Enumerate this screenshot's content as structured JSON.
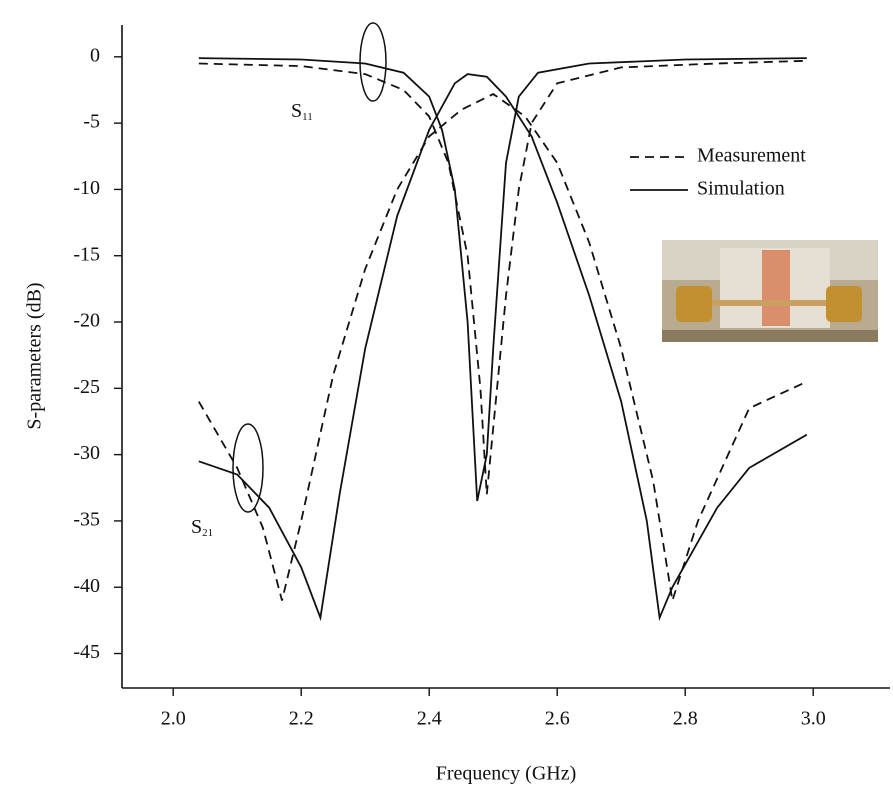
{
  "chart_data": {
    "type": "line",
    "xlabel": "Frequency (GHz)",
    "ylabel": "S-parameters (dB)",
    "xlim": [
      1.92,
      3.12
    ],
    "ylim": [
      -47.6,
      2.4
    ],
    "xticks": [
      {
        "value": 2.0,
        "label": "2.0"
      },
      {
        "value": 2.2,
        "label": "2.2"
      },
      {
        "value": 2.4,
        "label": "2.4"
      },
      {
        "value": 2.6,
        "label": "2.6"
      },
      {
        "value": 2.8,
        "label": "2.8"
      },
      {
        "value": 3.0,
        "label": "3.0"
      }
    ],
    "yticks": [
      0,
      -5,
      -10,
      -15,
      -20,
      -25,
      -30,
      -35,
      -40,
      -45
    ],
    "legend_position": "right",
    "series": [
      {
        "name": "Measurement",
        "color": "#111111",
        "dash": true,
        "x": [
          2.04,
          2.2,
          2.3,
          2.36,
          2.4,
          2.43,
          2.46,
          2.48,
          2.49,
          2.5,
          2.52,
          2.54,
          2.56,
          2.6,
          2.7,
          2.85,
          2.99
        ],
        "values": [
          -0.5,
          -0.7,
          -1.3,
          -2.5,
          -4.5,
          -8,
          -15,
          -25,
          -33,
          -28,
          -18,
          -10,
          -5,
          -2,
          -0.8,
          -0.5,
          -0.3
        ]
      },
      {
        "name": "Simulation",
        "color": "#111111",
        "dash": false,
        "x": [
          2.04,
          2.2,
          2.3,
          2.36,
          2.4,
          2.42,
          2.44,
          2.46,
          2.475,
          2.49,
          2.5,
          2.52,
          2.54,
          2.57,
          2.65,
          2.8,
          2.99
        ],
        "values": [
          -0.1,
          -0.2,
          -0.5,
          -1.2,
          -3,
          -5.5,
          -10,
          -20,
          -33.5,
          -30,
          -22,
          -8,
          -3,
          -1.2,
          -0.5,
          -0.2,
          -0.1
        ]
      },
      {
        "name": "Measurement",
        "color": "#111111",
        "dash": true,
        "x": [
          2.04,
          2.1,
          2.14,
          2.17,
          2.2,
          2.25,
          2.3,
          2.35,
          2.4,
          2.45,
          2.5,
          2.55,
          2.6,
          2.65,
          2.7,
          2.75,
          2.78,
          2.82,
          2.9,
          2.99
        ],
        "values": [
          -26,
          -31,
          -35.5,
          -41,
          -35,
          -24,
          -16,
          -10,
          -6,
          -4,
          -2.8,
          -4.5,
          -8,
          -14,
          -22,
          -32,
          -41,
          -35,
          -26.5,
          -24.5
        ]
      },
      {
        "name": "Simulation",
        "color": "#111111",
        "dash": false,
        "x": [
          2.04,
          2.1,
          2.15,
          2.2,
          2.23,
          2.26,
          2.3,
          2.35,
          2.4,
          2.44,
          2.46,
          2.49,
          2.52,
          2.56,
          2.6,
          2.65,
          2.7,
          2.74,
          2.76,
          2.78,
          2.85,
          2.9,
          2.99
        ],
        "values": [
          -30.5,
          -31.5,
          -34,
          -38.5,
          -42.3,
          -33,
          -22,
          -12,
          -5.5,
          -2,
          -1.3,
          -1.5,
          -3,
          -6,
          -11,
          -18,
          -26,
          -35,
          -42.3,
          -40,
          -34,
          -31,
          -28.5
        ]
      }
    ],
    "annotations": [
      {
        "text": "S",
        "subscript": "11"
      },
      {
        "text": "S",
        "subscript": "21"
      }
    ]
  }
}
